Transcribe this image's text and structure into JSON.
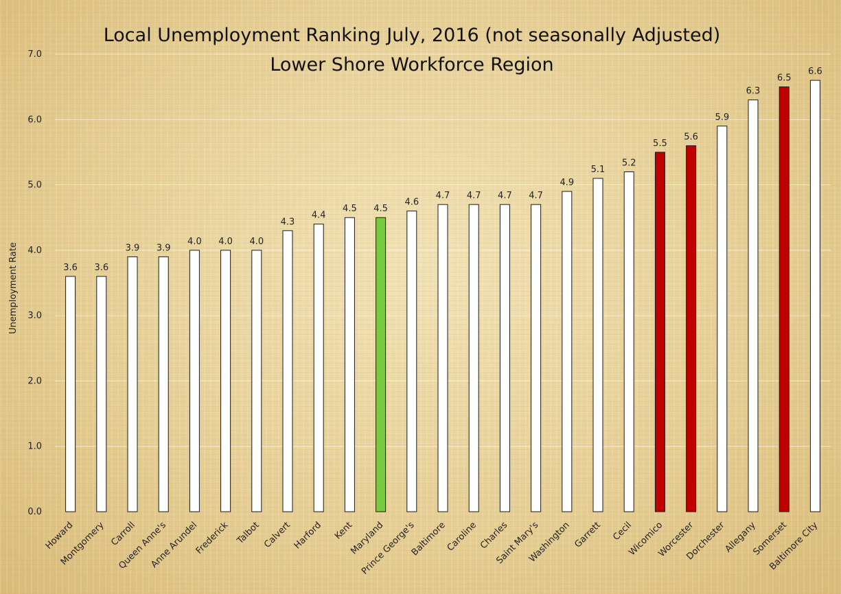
{
  "chart_data": {
    "type": "bar",
    "title": "Local Unemployment Ranking July, 2016 (not seasonally Adjusted)",
    "subtitle": "Lower Shore Workforce Region",
    "xlabel": "",
    "ylabel": "Unemployment Rate",
    "ylim": [
      0,
      7
    ],
    "yticks": [
      "0.0",
      "1.0",
      "2.0",
      "3.0",
      "4.0",
      "5.0",
      "6.0",
      "7.0"
    ],
    "grid": true,
    "legend": "none",
    "categories": [
      "Howard",
      "Montgomery",
      "Carroll",
      "Queen Anne's",
      "Anne Arundel",
      "Frederick",
      "Talbot",
      "Calvert",
      "Harford",
      "Kent",
      "Maryland",
      "Prince George's",
      "Baltimore",
      "Caroline",
      "Charles",
      "Saint Mary's",
      "Washington",
      "Garrett",
      "Cecil",
      "Wicomico",
      "Worcester",
      "Dorchester",
      "Allegany",
      "Somerset",
      "Baltimore City"
    ],
    "values": [
      3.6,
      3.6,
      3.9,
      3.9,
      4.0,
      4.0,
      4.0,
      4.3,
      4.4,
      4.5,
      4.5,
      4.6,
      4.7,
      4.7,
      4.7,
      4.7,
      4.9,
      5.1,
      5.2,
      5.5,
      5.6,
      5.9,
      6.3,
      6.5,
      6.6
    ],
    "data_labels": [
      "3.6",
      "3.6",
      "3.9",
      "3.9",
      "4.0",
      "4.0",
      "4.0",
      "4.3",
      "4.4",
      "4.5",
      "4.5",
      "4.6",
      "4.7",
      "4.7",
      "4.7",
      "4.7",
      "4.9",
      "5.1",
      "5.2",
      "5.5",
      "5.6",
      "5.9",
      "6.3",
      "6.5",
      "6.6"
    ],
    "colors": {
      "default": "#ffffff",
      "state": "#7ac943",
      "lower_shore": "#c00000"
    },
    "bar_groups": [
      "default",
      "default",
      "default",
      "default",
      "default",
      "default",
      "default",
      "default",
      "default",
      "default",
      "state",
      "default",
      "default",
      "default",
      "default",
      "default",
      "default",
      "default",
      "default",
      "lower_shore",
      "lower_shore",
      "default",
      "default",
      "lower_shore",
      "default"
    ]
  }
}
